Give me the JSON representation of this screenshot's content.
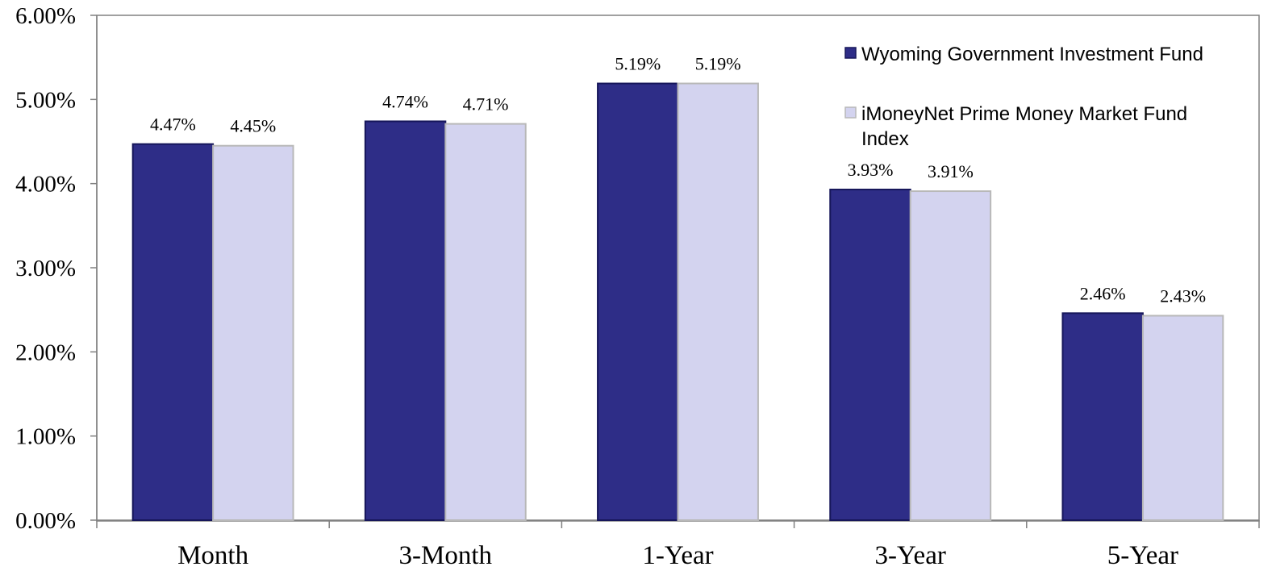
{
  "chart_data": {
    "type": "bar",
    "categories": [
      "Month",
      "3-Month",
      "1-Year",
      "3-Year",
      "5-Year"
    ],
    "series": [
      {
        "name": "Wyoming Government Investment Fund",
        "values": [
          4.47,
          4.74,
          5.19,
          3.93,
          2.46
        ],
        "labels": [
          "4.47%",
          "4.74%",
          "5.19%",
          "3.93%",
          "2.46%"
        ],
        "color": "#2e2d87",
        "border": "#16165a"
      },
      {
        "name": "iMoneyNet Prime Money Market Fund Index",
        "name_lines": [
          "iMoneyNet Prime Money Market Fund",
          "Index"
        ],
        "values": [
          4.45,
          4.71,
          5.19,
          3.91,
          2.43
        ],
        "labels": [
          "4.45%",
          "4.71%",
          "5.19%",
          "3.91%",
          "2.43%"
        ],
        "color": "#d3d3ef",
        "border": "#b8b8b8"
      }
    ],
    "ylim": [
      0,
      6
    ],
    "yticks": [
      0,
      1,
      2,
      3,
      4,
      5,
      6
    ],
    "ytick_labels": [
      "0.00%",
      "1.00%",
      "2.00%",
      "3.00%",
      "4.00%",
      "5.00%",
      "6.00%"
    ],
    "title": "",
    "xlabel": "",
    "ylabel": "",
    "grid": false,
    "legend_position": "top-right"
  }
}
